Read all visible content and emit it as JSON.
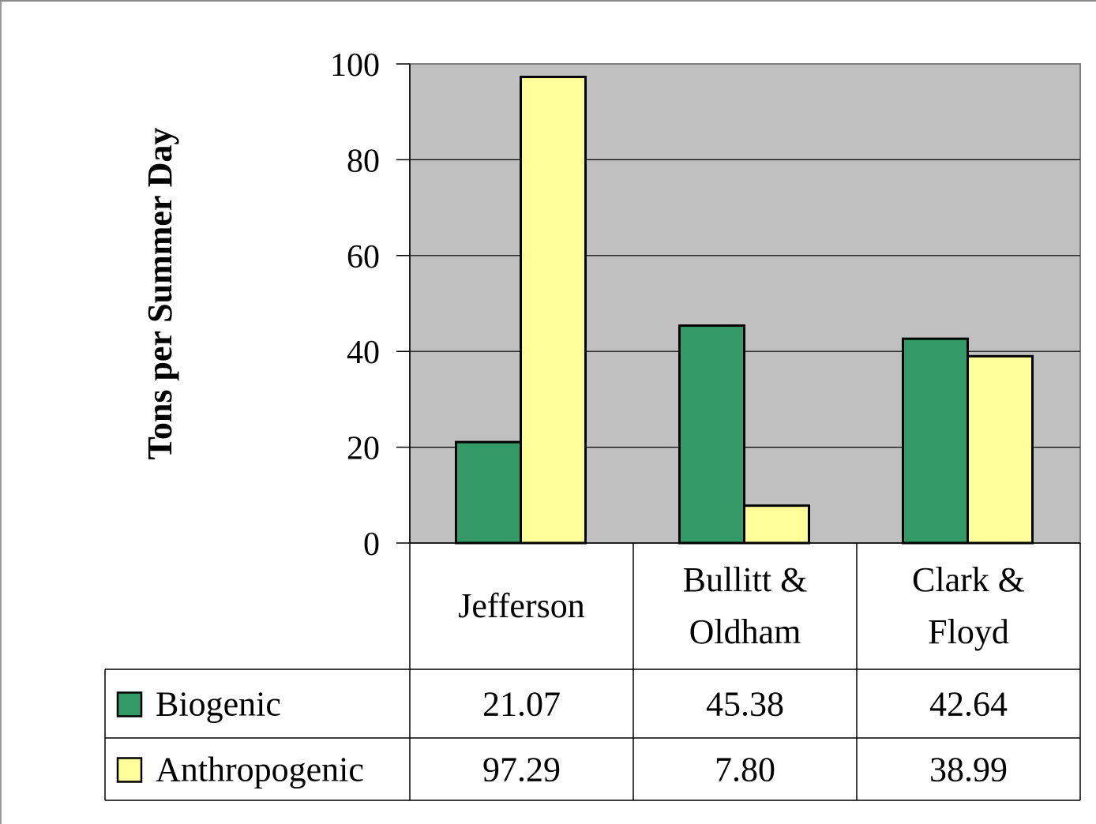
{
  "chart_data": {
    "type": "bar",
    "ylabel": "Tons per Summer Day",
    "ylim": [
      0,
      100
    ],
    "yticks": [
      0,
      20,
      40,
      60,
      80,
      100
    ],
    "grid": true,
    "legend": "data-table",
    "categories": [
      [
        "Jefferson"
      ],
      [
        "Bullitt &",
        "Oldham"
      ],
      [
        "Clark &",
        "Floyd"
      ]
    ],
    "series": [
      {
        "name": "Biogenic",
        "color": "#339966",
        "values": [
          21.07,
          45.38,
          42.64
        ],
        "labels": [
          "21.07",
          "45.38",
          "42.64"
        ]
      },
      {
        "name": "Anthropogenic",
        "color": "#ffff99",
        "values": [
          97.29,
          7.8,
          38.99
        ],
        "labels": [
          "97.29",
          "7.80",
          "38.99"
        ]
      }
    ],
    "plot_background": "#c0c0c0"
  }
}
